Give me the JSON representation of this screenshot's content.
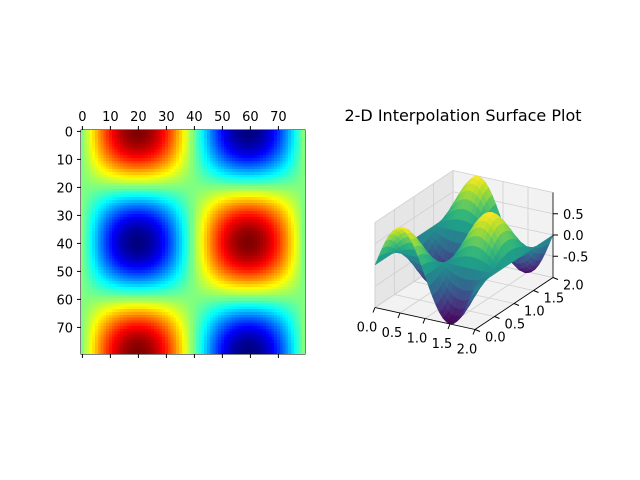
{
  "chart_data": [
    {
      "type": "heatmap",
      "title": "",
      "colormap": "jet",
      "rows": 80,
      "cols": 80,
      "function": "sin(x) * cos(y)",
      "x_range": [
        0,
        2
      ],
      "y_range": [
        0,
        2
      ],
      "value_range": [
        -1,
        1
      ],
      "xticks": [
        "0",
        "10",
        "20",
        "30",
        "40",
        "50",
        "60",
        "70"
      ],
      "yticks": [
        "0",
        "10",
        "20",
        "30",
        "40",
        "50",
        "60",
        "70"
      ],
      "xaxis_position": "top"
    },
    {
      "type": "surface",
      "title": "2-D Interpolation Surface Plot",
      "colormap": "viridis",
      "function": "sin(x) * cos(y)",
      "x_range": [
        0,
        2
      ],
      "y_range": [
        0,
        2
      ],
      "z_range": [
        -1,
        1
      ],
      "xticks": [
        "0.0",
        "0.5",
        "1.0",
        "1.5",
        "2.0"
      ],
      "yticks": [
        "0.0",
        "0.5",
        "1.0",
        "1.5",
        "2.0"
      ],
      "zticks": [
        "0.5",
        "0.0",
        "-0.5"
      ]
    }
  ],
  "colors": {
    "axis": "#000000",
    "pane": "#f2f2f2",
    "pane_side": "#e6e6e6",
    "grid": "#d0d0d0"
  }
}
